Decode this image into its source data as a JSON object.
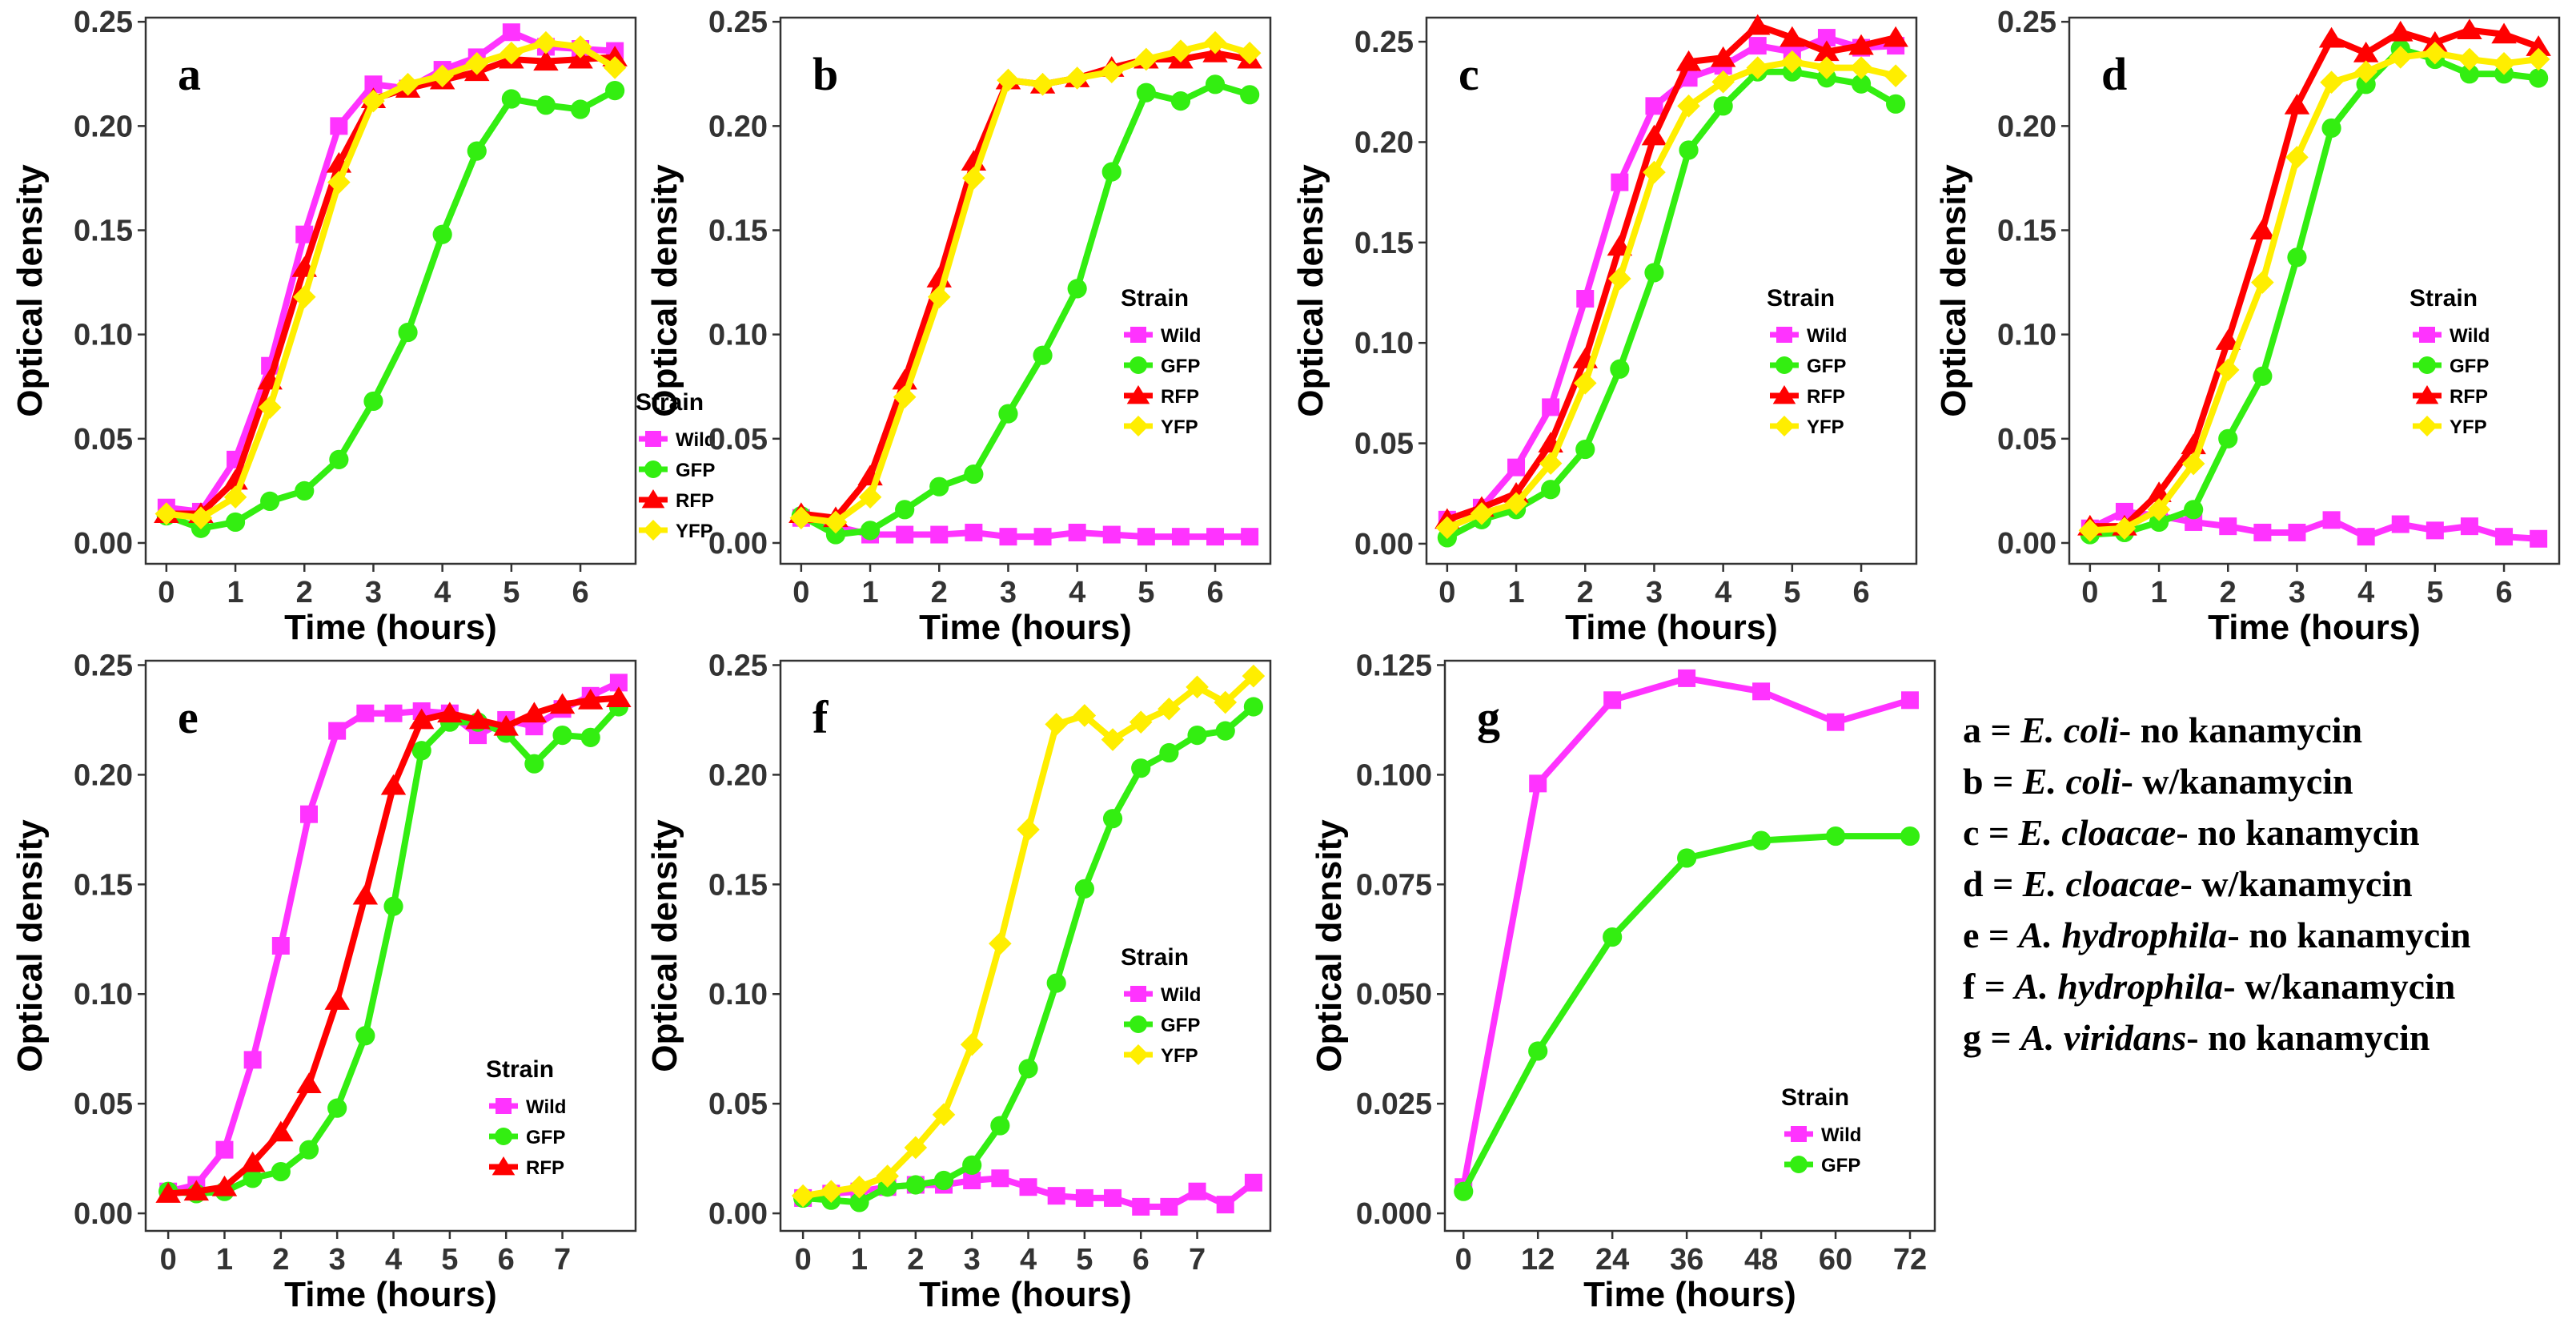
{
  "colors": {
    "Wild": "#ff33ff",
    "GFP": "#33ee11",
    "RFP": "#ff0000",
    "YFP": "#ffee00"
  },
  "legend_title": "Strain",
  "key": [
    {
      "letter": "a",
      "organism": "E. coli",
      "condition": "no kanamycin"
    },
    {
      "letter": "b",
      "organism": "E. coli",
      "condition": "w/kanamycin"
    },
    {
      "letter": "c",
      "organism": "E. cloacae",
      "condition": "no kanamycin"
    },
    {
      "letter": "d",
      "organism": "E. cloacae",
      "condition": "w/kanamycin"
    },
    {
      "letter": "e",
      "organism": "A. hydrophila",
      "condition": "no kanamycin"
    },
    {
      "letter": "f",
      "organism": "A. hydrophila",
      "condition": "w/kanamycin"
    },
    {
      "letter": "g",
      "organism": "A. viridans",
      "condition": "no kanamycin"
    }
  ],
  "chart_data": [
    {
      "type": "line",
      "panel": "a",
      "xlabel": "Time (hours)",
      "ylabel": "Optical density",
      "xlim": [
        -0.3,
        6.8
      ],
      "ylim": [
        -0.01,
        0.252
      ],
      "xticks": [
        0,
        1,
        2,
        3,
        4,
        5,
        6
      ],
      "xtick_labels": [
        "0",
        "1",
        "2",
        "3",
        "4",
        "5",
        "6"
      ],
      "yticks": [
        0,
        0.05,
        0.1,
        0.15,
        0.2,
        0.25
      ],
      "ytick_labels": [
        "0.00",
        "0.05",
        "0.10",
        "0.15",
        "0.20",
        "0.25"
      ],
      "x": [
        0,
        0.5,
        1,
        1.5,
        2,
        2.5,
        3,
        3.5,
        4,
        4.5,
        5,
        5.5,
        6,
        6.5
      ],
      "legend": {
        "title": "Strain",
        "position": "bottom-right"
      },
      "series": [
        {
          "name": "Wild",
          "values": [
            0.017,
            0.015,
            0.04,
            0.085,
            0.148,
            0.2,
            0.22,
            0.218,
            0.227,
            0.233,
            0.245,
            0.238,
            0.237,
            0.236
          ]
        },
        {
          "name": "GFP",
          "values": [
            0.013,
            0.007,
            0.01,
            0.02,
            0.025,
            0.04,
            0.068,
            0.101,
            0.148,
            0.188,
            0.213,
            0.21,
            0.208,
            0.217
          ]
        },
        {
          "name": "RFP",
          "values": [
            0.014,
            0.014,
            0.03,
            0.078,
            0.132,
            0.182,
            0.213,
            0.218,
            0.222,
            0.226,
            0.232,
            0.231,
            0.232,
            0.233
          ]
        },
        {
          "name": "YFP",
          "values": [
            0.014,
            0.012,
            0.022,
            0.065,
            0.118,
            0.173,
            0.212,
            0.22,
            0.224,
            0.23,
            0.235,
            0.24,
            0.238,
            0.228
          ]
        }
      ]
    },
    {
      "type": "line",
      "panel": "b",
      "xlabel": "Time (hours)",
      "ylabel": "Optical density",
      "xlim": [
        -0.3,
        6.8
      ],
      "ylim": [
        -0.01,
        0.252
      ],
      "xticks": [
        0,
        1,
        2,
        3,
        4,
        5,
        6
      ],
      "xtick_labels": [
        "0",
        "1",
        "2",
        "3",
        "4",
        "5",
        "6"
      ],
      "yticks": [
        0,
        0.05,
        0.1,
        0.15,
        0.2,
        0.25
      ],
      "ytick_labels": [
        "0.00",
        "0.05",
        "0.10",
        "0.15",
        "0.20",
        "0.25"
      ],
      "x": [
        0,
        0.5,
        1,
        1.5,
        2,
        2.5,
        3,
        3.5,
        4,
        4.5,
        5,
        5.5,
        6,
        6.5
      ],
      "legend": {
        "title": "Strain",
        "position": "center-right"
      },
      "series": [
        {
          "name": "Wild",
          "values": [
            0.012,
            0.008,
            0.004,
            0.004,
            0.004,
            0.005,
            0.003,
            0.003,
            0.005,
            0.004,
            0.003,
            0.003,
            0.003,
            0.003
          ]
        },
        {
          "name": "GFP",
          "values": [
            0.013,
            0.004,
            0.006,
            0.016,
            0.027,
            0.033,
            0.062,
            0.09,
            0.122,
            0.178,
            0.216,
            0.212,
            0.22,
            0.215
          ]
        },
        {
          "name": "RFP",
          "values": [
            0.014,
            0.012,
            0.032,
            0.078,
            0.127,
            0.183,
            0.222,
            0.22,
            0.223,
            0.228,
            0.232,
            0.232,
            0.235,
            0.232
          ]
        },
        {
          "name": "YFP",
          "values": [
            0.012,
            0.01,
            0.022,
            0.07,
            0.118,
            0.175,
            0.222,
            0.22,
            0.223,
            0.226,
            0.232,
            0.236,
            0.24,
            0.235
          ]
        }
      ]
    },
    {
      "type": "line",
      "panel": "c",
      "xlabel": "Time (hours)",
      "ylabel": "Optical density",
      "xlim": [
        -0.3,
        6.8
      ],
      "ylim": [
        -0.01,
        0.262
      ],
      "xticks": [
        0,
        1,
        2,
        3,
        4,
        5,
        6
      ],
      "xtick_labels": [
        "0",
        "1",
        "2",
        "3",
        "4",
        "5",
        "6"
      ],
      "yticks": [
        0,
        0.05,
        0.1,
        0.15,
        0.2,
        0.25
      ],
      "ytick_labels": [
        "0.00",
        "0.05",
        "0.10",
        "0.15",
        "0.20",
        "0.25"
      ],
      "x": [
        0,
        0.5,
        1,
        1.5,
        2,
        2.5,
        3,
        3.5,
        4,
        4.5,
        5,
        5.5,
        6,
        6.5
      ],
      "legend": {
        "title": "Strain",
        "position": "center-right"
      },
      "series": [
        {
          "name": "Wild",
          "values": [
            0.012,
            0.018,
            0.038,
            0.068,
            0.122,
            0.18,
            0.218,
            0.232,
            0.238,
            0.248,
            0.245,
            0.252,
            0.247,
            0.248
          ]
        },
        {
          "name": "GFP",
          "values": [
            0.003,
            0.012,
            0.017,
            0.027,
            0.047,
            0.087,
            0.135,
            0.196,
            0.218,
            0.235,
            0.235,
            0.232,
            0.229,
            0.219
          ]
        },
        {
          "name": "RFP",
          "values": [
            0.012,
            0.018,
            0.025,
            0.05,
            0.092,
            0.148,
            0.203,
            0.24,
            0.242,
            0.258,
            0.252,
            0.245,
            0.248,
            0.252
          ]
        },
        {
          "name": "YFP",
          "values": [
            0.008,
            0.015,
            0.02,
            0.04,
            0.08,
            0.132,
            0.185,
            0.218,
            0.23,
            0.237,
            0.24,
            0.237,
            0.237,
            0.233
          ]
        }
      ]
    },
    {
      "type": "line",
      "panel": "d",
      "xlabel": "Time (hours)",
      "ylabel": "Optical density",
      "xlim": [
        -0.3,
        6.8
      ],
      "ylim": [
        -0.01,
        0.252
      ],
      "xticks": [
        0,
        1,
        2,
        3,
        4,
        5,
        6
      ],
      "xtick_labels": [
        "0",
        "1",
        "2",
        "3",
        "4",
        "5",
        "6"
      ],
      "yticks": [
        0,
        0.05,
        0.1,
        0.15,
        0.2,
        0.25
      ],
      "ytick_labels": [
        "0.00",
        "0.05",
        "0.10",
        "0.15",
        "0.20",
        "0.25"
      ],
      "x": [
        0,
        0.5,
        1,
        1.5,
        2,
        2.5,
        3,
        3.5,
        4,
        4.5,
        5,
        5.5,
        6,
        6.5
      ],
      "legend": {
        "title": "Strain",
        "position": "center-right"
      },
      "series": [
        {
          "name": "Wild",
          "values": [
            0.007,
            0.015,
            0.013,
            0.01,
            0.008,
            0.005,
            0.005,
            0.011,
            0.003,
            0.009,
            0.006,
            0.008,
            0.003,
            0.002
          ]
        },
        {
          "name": "GFP",
          "values": [
            0.004,
            0.005,
            0.01,
            0.016,
            0.05,
            0.08,
            0.137,
            0.199,
            0.22,
            0.237,
            0.232,
            0.225,
            0.225,
            0.223
          ]
        },
        {
          "name": "RFP",
          "values": [
            0.008,
            0.008,
            0.024,
            0.047,
            0.097,
            0.15,
            0.21,
            0.242,
            0.235,
            0.245,
            0.24,
            0.246,
            0.244,
            0.238
          ]
        },
        {
          "name": "YFP",
          "values": [
            0.006,
            0.007,
            0.016,
            0.038,
            0.083,
            0.125,
            0.185,
            0.221,
            0.226,
            0.233,
            0.235,
            0.232,
            0.23,
            0.232
          ]
        }
      ]
    },
    {
      "type": "line",
      "panel": "e",
      "xlabel": "Time (hours)",
      "ylabel": "Optical density",
      "xlim": [
        -0.4,
        8.3
      ],
      "ylim": [
        -0.008,
        0.252
      ],
      "xticks": [
        0,
        1,
        2,
        3,
        4,
        5,
        6,
        7
      ],
      "xtick_labels": [
        "0",
        "1",
        "2",
        "3",
        "4",
        "5",
        "6",
        "7"
      ],
      "yticks": [
        0,
        0.05,
        0.1,
        0.15,
        0.2,
        0.25
      ],
      "ytick_labels": [
        "0.00",
        "0.05",
        "0.10",
        "0.15",
        "0.20",
        "0.25"
      ],
      "x": [
        0,
        0.5,
        1,
        1.5,
        2,
        2.5,
        3,
        3.5,
        4,
        4.5,
        5,
        5.5,
        6,
        6.5,
        7,
        7.5,
        8
      ],
      "legend": {
        "title": "Strain",
        "position": "bottom-right"
      },
      "series": [
        {
          "name": "Wild",
          "values": [
            0.01,
            0.013,
            0.029,
            0.07,
            0.122,
            0.182,
            0.22,
            0.228,
            0.228,
            0.229,
            0.228,
            0.218,
            0.225,
            0.222,
            0.23,
            0.236,
            0.242
          ]
        },
        {
          "name": "GFP",
          "values": [
            0.01,
            0.009,
            0.01,
            0.016,
            0.019,
            0.029,
            0.048,
            0.081,
            0.14,
            0.211,
            0.224,
            0.224,
            0.219,
            0.205,
            0.218,
            0.217,
            0.231
          ]
        },
        {
          "name": "RFP",
          "values": [
            0.009,
            0.01,
            0.012,
            0.023,
            0.037,
            0.059,
            0.097,
            0.145,
            0.195,
            0.225,
            0.228,
            0.225,
            0.222,
            0.228,
            0.232,
            0.234,
            0.235
          ]
        }
      ]
    },
    {
      "type": "line",
      "panel": "f",
      "xlabel": "Time (hours)",
      "ylabel": "Optical density",
      "xlim": [
        -0.4,
        8.3
      ],
      "ylim": [
        -0.008,
        0.252
      ],
      "xticks": [
        0,
        1,
        2,
        3,
        4,
        5,
        6,
        7
      ],
      "xtick_labels": [
        "0",
        "1",
        "2",
        "3",
        "4",
        "5",
        "6",
        "7"
      ],
      "yticks": [
        0,
        0.05,
        0.1,
        0.15,
        0.2,
        0.25
      ],
      "ytick_labels": [
        "0.00",
        "0.05",
        "0.10",
        "0.15",
        "0.20",
        "0.25"
      ],
      "x": [
        0,
        0.5,
        1,
        1.5,
        2,
        2.5,
        3,
        3.5,
        4,
        4.5,
        5,
        5.5,
        6,
        6.5,
        7,
        7.5,
        8
      ],
      "legend": {
        "title": "Strain",
        "position": "center-right"
      },
      "series": [
        {
          "name": "Wild",
          "values": [
            0.007,
            0.009,
            0.01,
            0.012,
            0.013,
            0.013,
            0.015,
            0.016,
            0.012,
            0.008,
            0.007,
            0.007,
            0.003,
            0.003,
            0.01,
            0.004,
            0.014
          ]
        },
        {
          "name": "GFP",
          "values": [
            0.007,
            0.006,
            0.005,
            0.012,
            0.013,
            0.015,
            0.022,
            0.04,
            0.066,
            0.105,
            0.148,
            0.18,
            0.203,
            0.21,
            0.218,
            0.22,
            0.231
          ]
        },
        {
          "name": "YFP",
          "values": [
            0.008,
            0.01,
            0.012,
            0.017,
            0.03,
            0.045,
            0.077,
            0.123,
            0.175,
            0.223,
            0.227,
            0.216,
            0.224,
            0.23,
            0.24,
            0.233,
            0.245
          ]
        }
      ]
    },
    {
      "type": "line",
      "panel": "g",
      "xlabel": "Time (hours)",
      "ylabel": "Optical density",
      "xlim": [
        -3,
        76
      ],
      "ylim": [
        -0.004,
        0.126
      ],
      "xticks": [
        0,
        12,
        24,
        36,
        48,
        60,
        72
      ],
      "xtick_labels": [
        "0",
        "12",
        "24",
        "36",
        "48",
        "60",
        "72"
      ],
      "yticks": [
        0,
        0.025,
        0.05,
        0.075,
        0.1,
        0.125
      ],
      "ytick_labels": [
        "0.000",
        "0.025",
        "0.050",
        "0.075",
        "0.100",
        "0.125"
      ],
      "x": [
        0,
        12,
        24,
        36,
        48,
        60,
        72
      ],
      "legend": {
        "title": "Strain",
        "position": "bottom-right"
      },
      "series": [
        {
          "name": "Wild",
          "values": [
            0.006,
            0.098,
            0.117,
            0.122,
            0.119,
            0.112,
            0.117
          ]
        },
        {
          "name": "GFP",
          "values": [
            0.005,
            0.037,
            0.063,
            0.081,
            0.085,
            0.086,
            0.086
          ]
        }
      ]
    }
  ]
}
